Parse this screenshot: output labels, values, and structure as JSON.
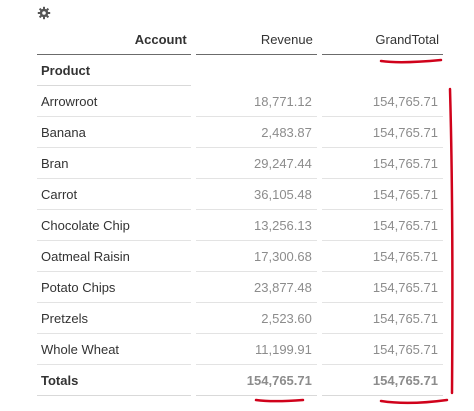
{
  "toolbar": {
    "icon": "gear-icon"
  },
  "table": {
    "headers": {
      "account": "Account",
      "revenue": "Revenue",
      "grand_total": "GrandTotal"
    },
    "row_group_label": "Product",
    "rows": [
      {
        "product": "Arrowroot",
        "revenue": "18,771.12",
        "grand_total": "154,765.71"
      },
      {
        "product": "Banana",
        "revenue": "2,483.87",
        "grand_total": "154,765.71"
      },
      {
        "product": "Bran",
        "revenue": "29,247.44",
        "grand_total": "154,765.71"
      },
      {
        "product": "Carrot",
        "revenue": "36,105.48",
        "grand_total": "154,765.71"
      },
      {
        "product": "Chocolate Chip",
        "revenue": "13,256.13",
        "grand_total": "154,765.71"
      },
      {
        "product": "Oatmeal Raisin",
        "revenue": "17,300.68",
        "grand_total": "154,765.71"
      },
      {
        "product": "Potato Chips",
        "revenue": "23,877.48",
        "grand_total": "154,765.71"
      },
      {
        "product": "Pretzels",
        "revenue": "2,523.60",
        "grand_total": "154,765.71"
      },
      {
        "product": "Whole Wheat",
        "revenue": "11,199.91",
        "grand_total": "154,765.71"
      }
    ],
    "totals": {
      "label": "Totals",
      "revenue": "154,765.71",
      "grand_total": "154,765.71"
    }
  },
  "annotation_color": "#d0021b"
}
